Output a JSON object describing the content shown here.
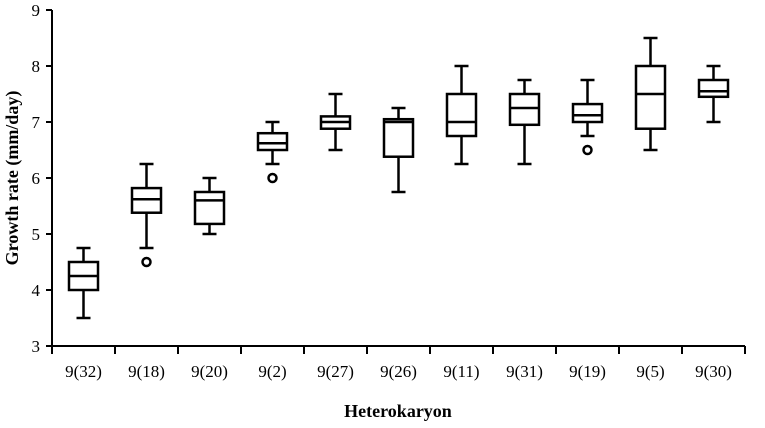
{
  "chart_data": {
    "type": "boxplot",
    "xlabel": "Heterokaryon",
    "ylabel": "Growth rate (mm/day)",
    "ylim": [
      3,
      9
    ],
    "yticks": [
      "3",
      "4",
      "5",
      "6",
      "7",
      "8",
      "9"
    ],
    "grid": false,
    "categories": [
      "9(32)",
      "9(18)",
      "9(20)",
      "9(2)",
      "9(27)",
      "9(26)",
      "9(11)",
      "9(31)",
      "9(19)",
      "9(5)",
      "9(30)"
    ],
    "boxes": [
      {
        "whisker_low": 3.5,
        "q1": 4.0,
        "median": 4.25,
        "q3": 4.5,
        "whisker_high": 4.75,
        "outliers": []
      },
      {
        "whisker_low": 4.75,
        "q1": 5.38,
        "median": 5.62,
        "q3": 5.82,
        "whisker_high": 6.25,
        "outliers": [
          4.5
        ]
      },
      {
        "whisker_low": 5.0,
        "q1": 5.18,
        "median": 5.6,
        "q3": 5.75,
        "whisker_high": 6.0,
        "outliers": []
      },
      {
        "whisker_low": 6.25,
        "q1": 6.5,
        "median": 6.62,
        "q3": 6.8,
        "whisker_high": 7.0,
        "outliers": [
          6.0
        ]
      },
      {
        "whisker_low": 6.5,
        "q1": 6.88,
        "median": 7.0,
        "q3": 7.1,
        "whisker_high": 7.5,
        "outliers": []
      },
      {
        "whisker_low": 5.75,
        "q1": 6.38,
        "median": 7.0,
        "q3": 7.05,
        "whisker_high": 7.25,
        "outliers": []
      },
      {
        "whisker_low": 6.25,
        "q1": 6.75,
        "median": 7.0,
        "q3": 7.5,
        "whisker_high": 8.0,
        "outliers": []
      },
      {
        "whisker_low": 6.25,
        "q1": 6.95,
        "median": 7.25,
        "q3": 7.5,
        "whisker_high": 7.75,
        "outliers": []
      },
      {
        "whisker_low": 6.75,
        "q1": 7.0,
        "median": 7.12,
        "q3": 7.32,
        "whisker_high": 7.75,
        "outliers": [
          6.5
        ]
      },
      {
        "whisker_low": 6.5,
        "q1": 6.88,
        "median": 7.5,
        "q3": 8.0,
        "whisker_high": 8.5,
        "outliers": []
      },
      {
        "whisker_low": 7.0,
        "q1": 7.45,
        "median": 7.55,
        "q3": 7.75,
        "whisker_high": 8.0,
        "outliers": []
      }
    ]
  }
}
